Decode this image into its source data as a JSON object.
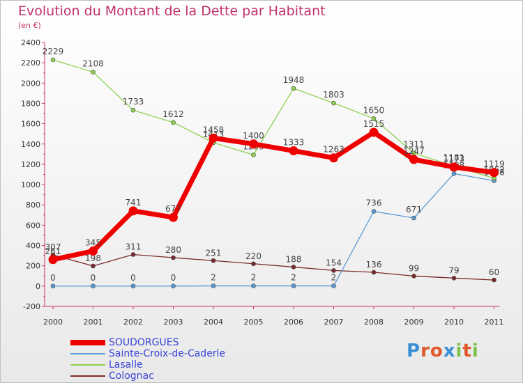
{
  "title": "Evolution du Montant de la Dette par Habitant",
  "unit": "(en €)",
  "logo": {
    "text": "Proxiti",
    "colors": [
      "#3a8fd4",
      "#e0572a",
      "#e0572a",
      "#3a8fd4",
      "#7cc24a",
      "#e0572a",
      "#7cc24a"
    ]
  },
  "chart_data": {
    "type": "line",
    "x": [
      "2000",
      "2001",
      "2002",
      "2003",
      "2004",
      "2005",
      "2006",
      "2007",
      "2008",
      "2009",
      "2010",
      "2011"
    ],
    "ylim": [
      -200,
      2400
    ],
    "yticks": [
      "-200",
      "0",
      "200",
      "400",
      "600",
      "800",
      "1000",
      "1200",
      "1400",
      "1600",
      "1800",
      "2000",
      "2200",
      "2400"
    ],
    "grid": false,
    "legend_position": "bottom",
    "series": [
      {
        "name": "Colognac",
        "color": "#7b2a2a",
        "values": [
          307,
          198,
          311,
          280,
          251,
          220,
          188,
          154,
          136,
          99,
          79,
          60
        ],
        "labels": [
          "307",
          "198",
          "311",
          "280",
          "251",
          "220",
          "188",
          "154",
          "136",
          "99",
          "79",
          "60"
        ]
      },
      {
        "name": "Sainte-Croix-de-Caderle",
        "color": "#5b9bd5",
        "values": [
          0,
          0,
          0,
          0,
          2,
          2,
          2,
          2,
          736,
          671,
          1108,
          1038
        ],
        "labels": [
          "0",
          "0",
          "0",
          "0",
          "2",
          "2",
          "2",
          "2",
          "736",
          "671",
          "1108",
          "1038"
        ]
      },
      {
        "name": "Lasalle",
        "color": "#8fd14f",
        "values": [
          2229,
          2108,
          1733,
          1612,
          1413,
          1293,
          1948,
          1803,
          1650,
          1311,
          1181,
          1062
        ],
        "labels": [
          "2229",
          "2108",
          "1733",
          "1612",
          "1413",
          "1293",
          "1948",
          "1803",
          "1650",
          "1311",
          "1181",
          "1062"
        ]
      },
      {
        "name": "SOUDORGUES",
        "color": "#ee0000",
        "values": [
          261,
          345,
          741,
          677,
          1458,
          1400,
          1333,
          1263,
          1515,
          1247,
          1173,
          1119
        ],
        "labels": [
          "261",
          "345",
          "741",
          "677",
          "1458",
          "1400",
          "1333",
          "1263",
          "1515",
          "1247",
          "1173",
          "1119"
        ]
      }
    ],
    "legend": [
      "SOUDORGUES",
      "Sainte-Croix-de-Caderle",
      "Lasalle",
      "Colognac"
    ]
  }
}
